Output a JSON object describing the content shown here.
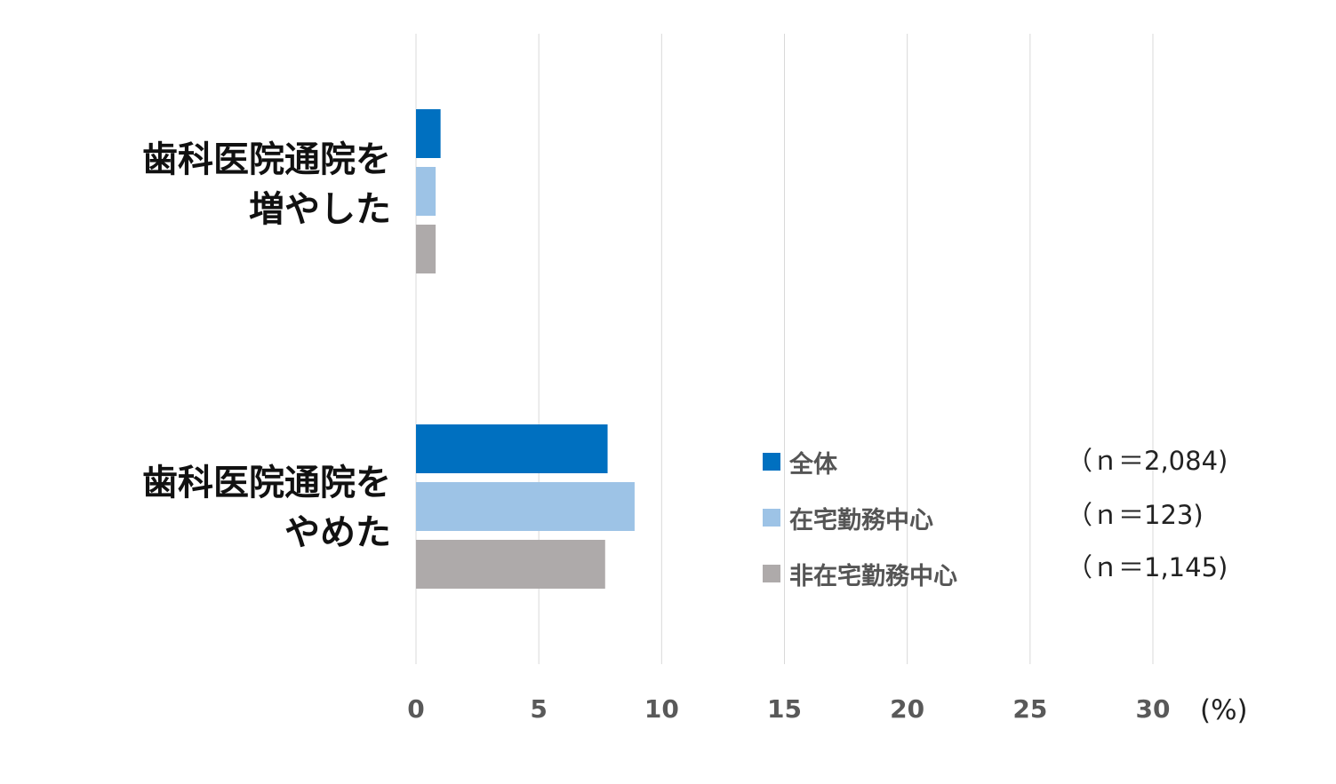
{
  "chart_data": {
    "type": "bar",
    "orientation": "horizontal",
    "categories": [
      "歯科医院通院を\n増やした",
      "歯科医院通院を\nやめた"
    ],
    "series": [
      {
        "name": "全体",
        "n_label": "（ｎ＝2,084)",
        "color": "#0070C0",
        "values": [
          1.0,
          7.8
        ]
      },
      {
        "name": "在宅勤務中心",
        "n_label": "（ｎ＝123)",
        "color": "#9DC3E6",
        "values": [
          0.8,
          8.9
        ]
      },
      {
        "name": "非在宅勤務中心",
        "n_label": "（ｎ＝1,145)",
        "color": "#AEAAAA",
        "values": [
          0.8,
          7.7
        ]
      }
    ],
    "x_ticks": [
      "0",
      "5",
      "10",
      "15",
      "20",
      "25",
      "30"
    ],
    "xlim": [
      0,
      30
    ],
    "unit_label": "(%)",
    "grid": true,
    "legend_position": "right"
  }
}
